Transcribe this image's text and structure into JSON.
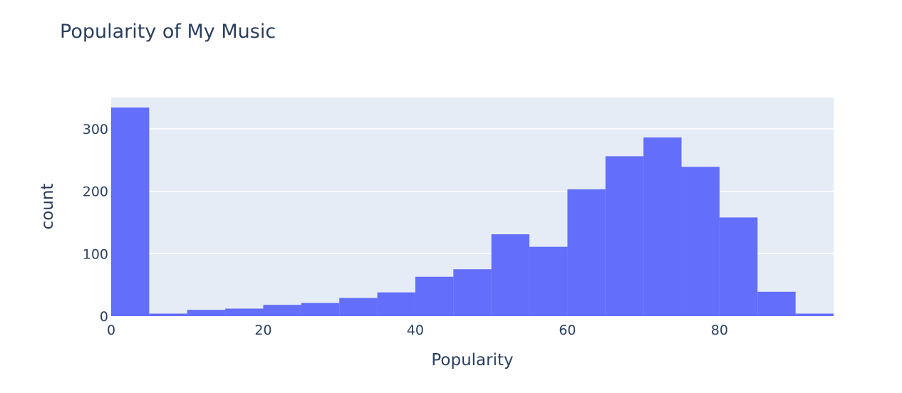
{
  "chart_data": {
    "type": "bar",
    "title": "Popularity of My Music",
    "xlabel": "Popularity",
    "ylabel": "count",
    "bin_width": 5,
    "xlim": [
      0,
      95
    ],
    "ylim": [
      0,
      350
    ],
    "xticks": [
      0,
      20,
      40,
      60,
      80
    ],
    "yticks": [
      0,
      100,
      200,
      300
    ],
    "grid": true,
    "bins": [
      {
        "start": 0,
        "count": 334
      },
      {
        "start": 5,
        "count": 4
      },
      {
        "start": 10,
        "count": 10
      },
      {
        "start": 15,
        "count": 12
      },
      {
        "start": 20,
        "count": 18
      },
      {
        "start": 25,
        "count": 21
      },
      {
        "start": 30,
        "count": 29
      },
      {
        "start": 35,
        "count": 38
      },
      {
        "start": 40,
        "count": 63
      },
      {
        "start": 45,
        "count": 75
      },
      {
        "start": 50,
        "count": 131
      },
      {
        "start": 55,
        "count": 111
      },
      {
        "start": 60,
        "count": 203
      },
      {
        "start": 65,
        "count": 256
      },
      {
        "start": 70,
        "count": 286
      },
      {
        "start": 75,
        "count": 239
      },
      {
        "start": 80,
        "count": 158
      },
      {
        "start": 85,
        "count": 39
      },
      {
        "start": 90,
        "count": 4
      }
    ],
    "colors": {
      "bar": "#636efa",
      "plot_bg": "#e5ecf6",
      "grid": "#ffffff",
      "text": "#2a3f5f"
    }
  }
}
